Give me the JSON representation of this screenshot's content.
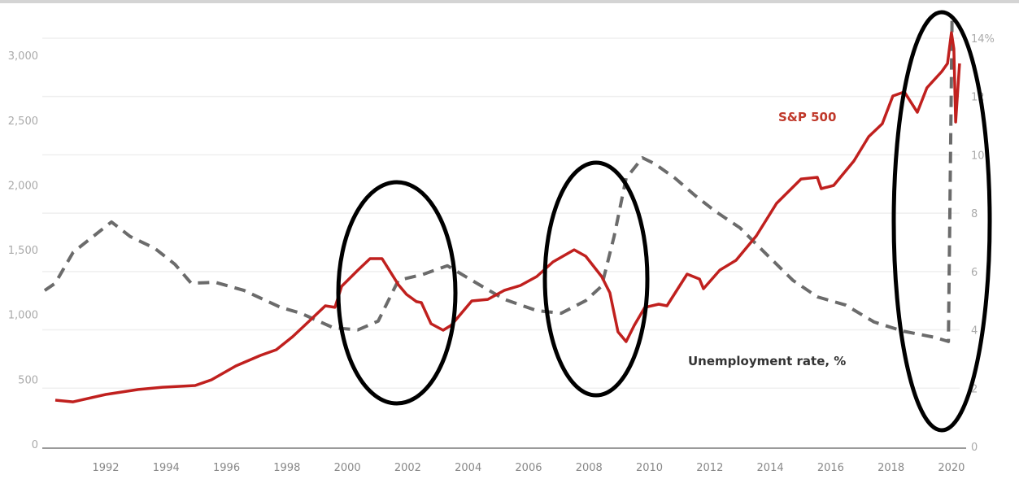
{
  "chart_data": {
    "type": "line",
    "title": "",
    "xlabel": "",
    "ylabel_left": "",
    "ylabel_right": "",
    "x_ticks": [
      "1992",
      "1994",
      "1996",
      "1998",
      "2000",
      "2002",
      "2004",
      "2006",
      "2008",
      "2010",
      "2012",
      "2014",
      "2016",
      "2018",
      "2020"
    ],
    "y_left_ticks": [
      "0",
      "500",
      "1,000",
      "1,500",
      "2,000",
      "2,500",
      "3,000"
    ],
    "y_left_values": [
      0,
      500,
      1000,
      1500,
      2000,
      2500,
      3000
    ],
    "y_right_ticks": [
      "0",
      "2",
      "4",
      "6",
      "8",
      "10",
      "12",
      "14%"
    ],
    "y_right_values": [
      0,
      2,
      4,
      6,
      8,
      10,
      12,
      14
    ],
    "xlim": [
      1990,
      2020.5
    ],
    "ylim_left": [
      0,
      3150
    ],
    "ylim_right": [
      0,
      14.7
    ],
    "grid": true,
    "series": [
      {
        "name": "S&P 500",
        "axis": "left",
        "color": "#c0201e",
        "style": "solid",
        "points": [
          [
            1990.33,
            339
          ],
          [
            1990.92,
            326
          ],
          [
            1992.0,
            383
          ],
          [
            1993.08,
            421
          ],
          [
            1993.88,
            439
          ],
          [
            1994.96,
            452
          ],
          [
            1995.5,
            496
          ],
          [
            1996.31,
            603
          ],
          [
            1997.12,
            684
          ],
          [
            1997.65,
            728
          ],
          [
            1998.19,
            829
          ],
          [
            1998.73,
            948
          ],
          [
            1999.27,
            1067
          ],
          [
            1999.59,
            1055
          ],
          [
            1999.81,
            1218
          ],
          [
            2000.35,
            1343
          ],
          [
            2000.75,
            1431
          ],
          [
            2001.15,
            1431
          ],
          [
            2001.69,
            1230
          ],
          [
            2001.96,
            1155
          ],
          [
            2002.29,
            1099
          ],
          [
            2002.45,
            1092
          ],
          [
            2002.77,
            929
          ],
          [
            2003.17,
            879
          ],
          [
            2003.44,
            917
          ],
          [
            2004.12,
            1105
          ],
          [
            2004.65,
            1117
          ],
          [
            2005.19,
            1186
          ],
          [
            2005.73,
            1224
          ],
          [
            2006.27,
            1293
          ],
          [
            2006.81,
            1406
          ],
          [
            2007.51,
            1500
          ],
          [
            2007.89,
            1450
          ],
          [
            2008.42,
            1293
          ],
          [
            2008.69,
            1168
          ],
          [
            2008.96,
            866
          ],
          [
            2009.23,
            791
          ],
          [
            2009.5,
            917
          ],
          [
            2009.85,
            1055
          ],
          [
            2010.31,
            1080
          ],
          [
            2010.58,
            1067
          ],
          [
            2011.25,
            1312
          ],
          [
            2011.66,
            1274
          ],
          [
            2011.79,
            1199
          ],
          [
            2012.33,
            1343
          ],
          [
            2012.87,
            1419
          ],
          [
            2013.54,
            1607
          ],
          [
            2014.21,
            1858
          ],
          [
            2015.02,
            2046
          ],
          [
            2015.56,
            2059
          ],
          [
            2015.69,
            1971
          ],
          [
            2016.1,
            1996
          ],
          [
            2016.77,
            2185
          ],
          [
            2017.26,
            2373
          ],
          [
            2017.71,
            2473
          ],
          [
            2018.06,
            2687
          ],
          [
            2018.44,
            2718
          ],
          [
            2018.87,
            2561
          ],
          [
            2019.19,
            2750
          ],
          [
            2019.68,
            2875
          ],
          [
            2019.87,
            2938
          ],
          [
            2020.0,
            3176
          ],
          [
            2020.08,
            3051
          ],
          [
            2020.14,
            2486
          ],
          [
            2020.27,
            2938
          ]
        ]
      },
      {
        "name": "Unemployment rate, %",
        "axis": "right",
        "color": "#6b6b6b",
        "style": "dashed",
        "points": [
          [
            1989.98,
            5.35
          ],
          [
            1990.33,
            5.6
          ],
          [
            1990.92,
            6.66
          ],
          [
            1992.19,
            7.7
          ],
          [
            1992.81,
            7.2
          ],
          [
            1993.62,
            6.8
          ],
          [
            1994.29,
            6.25
          ],
          [
            1994.83,
            5.6
          ],
          [
            1995.63,
            5.63
          ],
          [
            1996.58,
            5.35
          ],
          [
            1997.79,
            4.77
          ],
          [
            1998.46,
            4.57
          ],
          [
            1999.54,
            4.07
          ],
          [
            2000.35,
            4.0
          ],
          [
            2001.02,
            4.3
          ],
          [
            2001.69,
            5.7
          ],
          [
            2002.5,
            5.9
          ],
          [
            2003.31,
            6.2
          ],
          [
            2004.12,
            5.7
          ],
          [
            2005.19,
            5.05
          ],
          [
            2006.27,
            4.66
          ],
          [
            2007.08,
            4.57
          ],
          [
            2007.89,
            5.0
          ],
          [
            2008.42,
            5.5
          ],
          [
            2008.83,
            7.2
          ],
          [
            2009.23,
            9.2
          ],
          [
            2009.77,
            9.9
          ],
          [
            2010.17,
            9.7
          ],
          [
            2010.85,
            9.2
          ],
          [
            2011.52,
            8.6
          ],
          [
            2012.19,
            8.06
          ],
          [
            2013.0,
            7.5
          ],
          [
            2013.81,
            6.66
          ],
          [
            2014.75,
            5.7
          ],
          [
            2015.56,
            5.13
          ],
          [
            2016.5,
            4.85
          ],
          [
            2017.44,
            4.27
          ],
          [
            2018.38,
            3.96
          ],
          [
            2019.46,
            3.74
          ],
          [
            2019.9,
            3.6
          ],
          [
            2020.02,
            14.7
          ]
        ]
      }
    ],
    "annotations": {
      "sp_label": "S&P 500",
      "unemployment_label": "Unemployment rate, %",
      "highlight_ellipse_color": "#000000"
    }
  }
}
